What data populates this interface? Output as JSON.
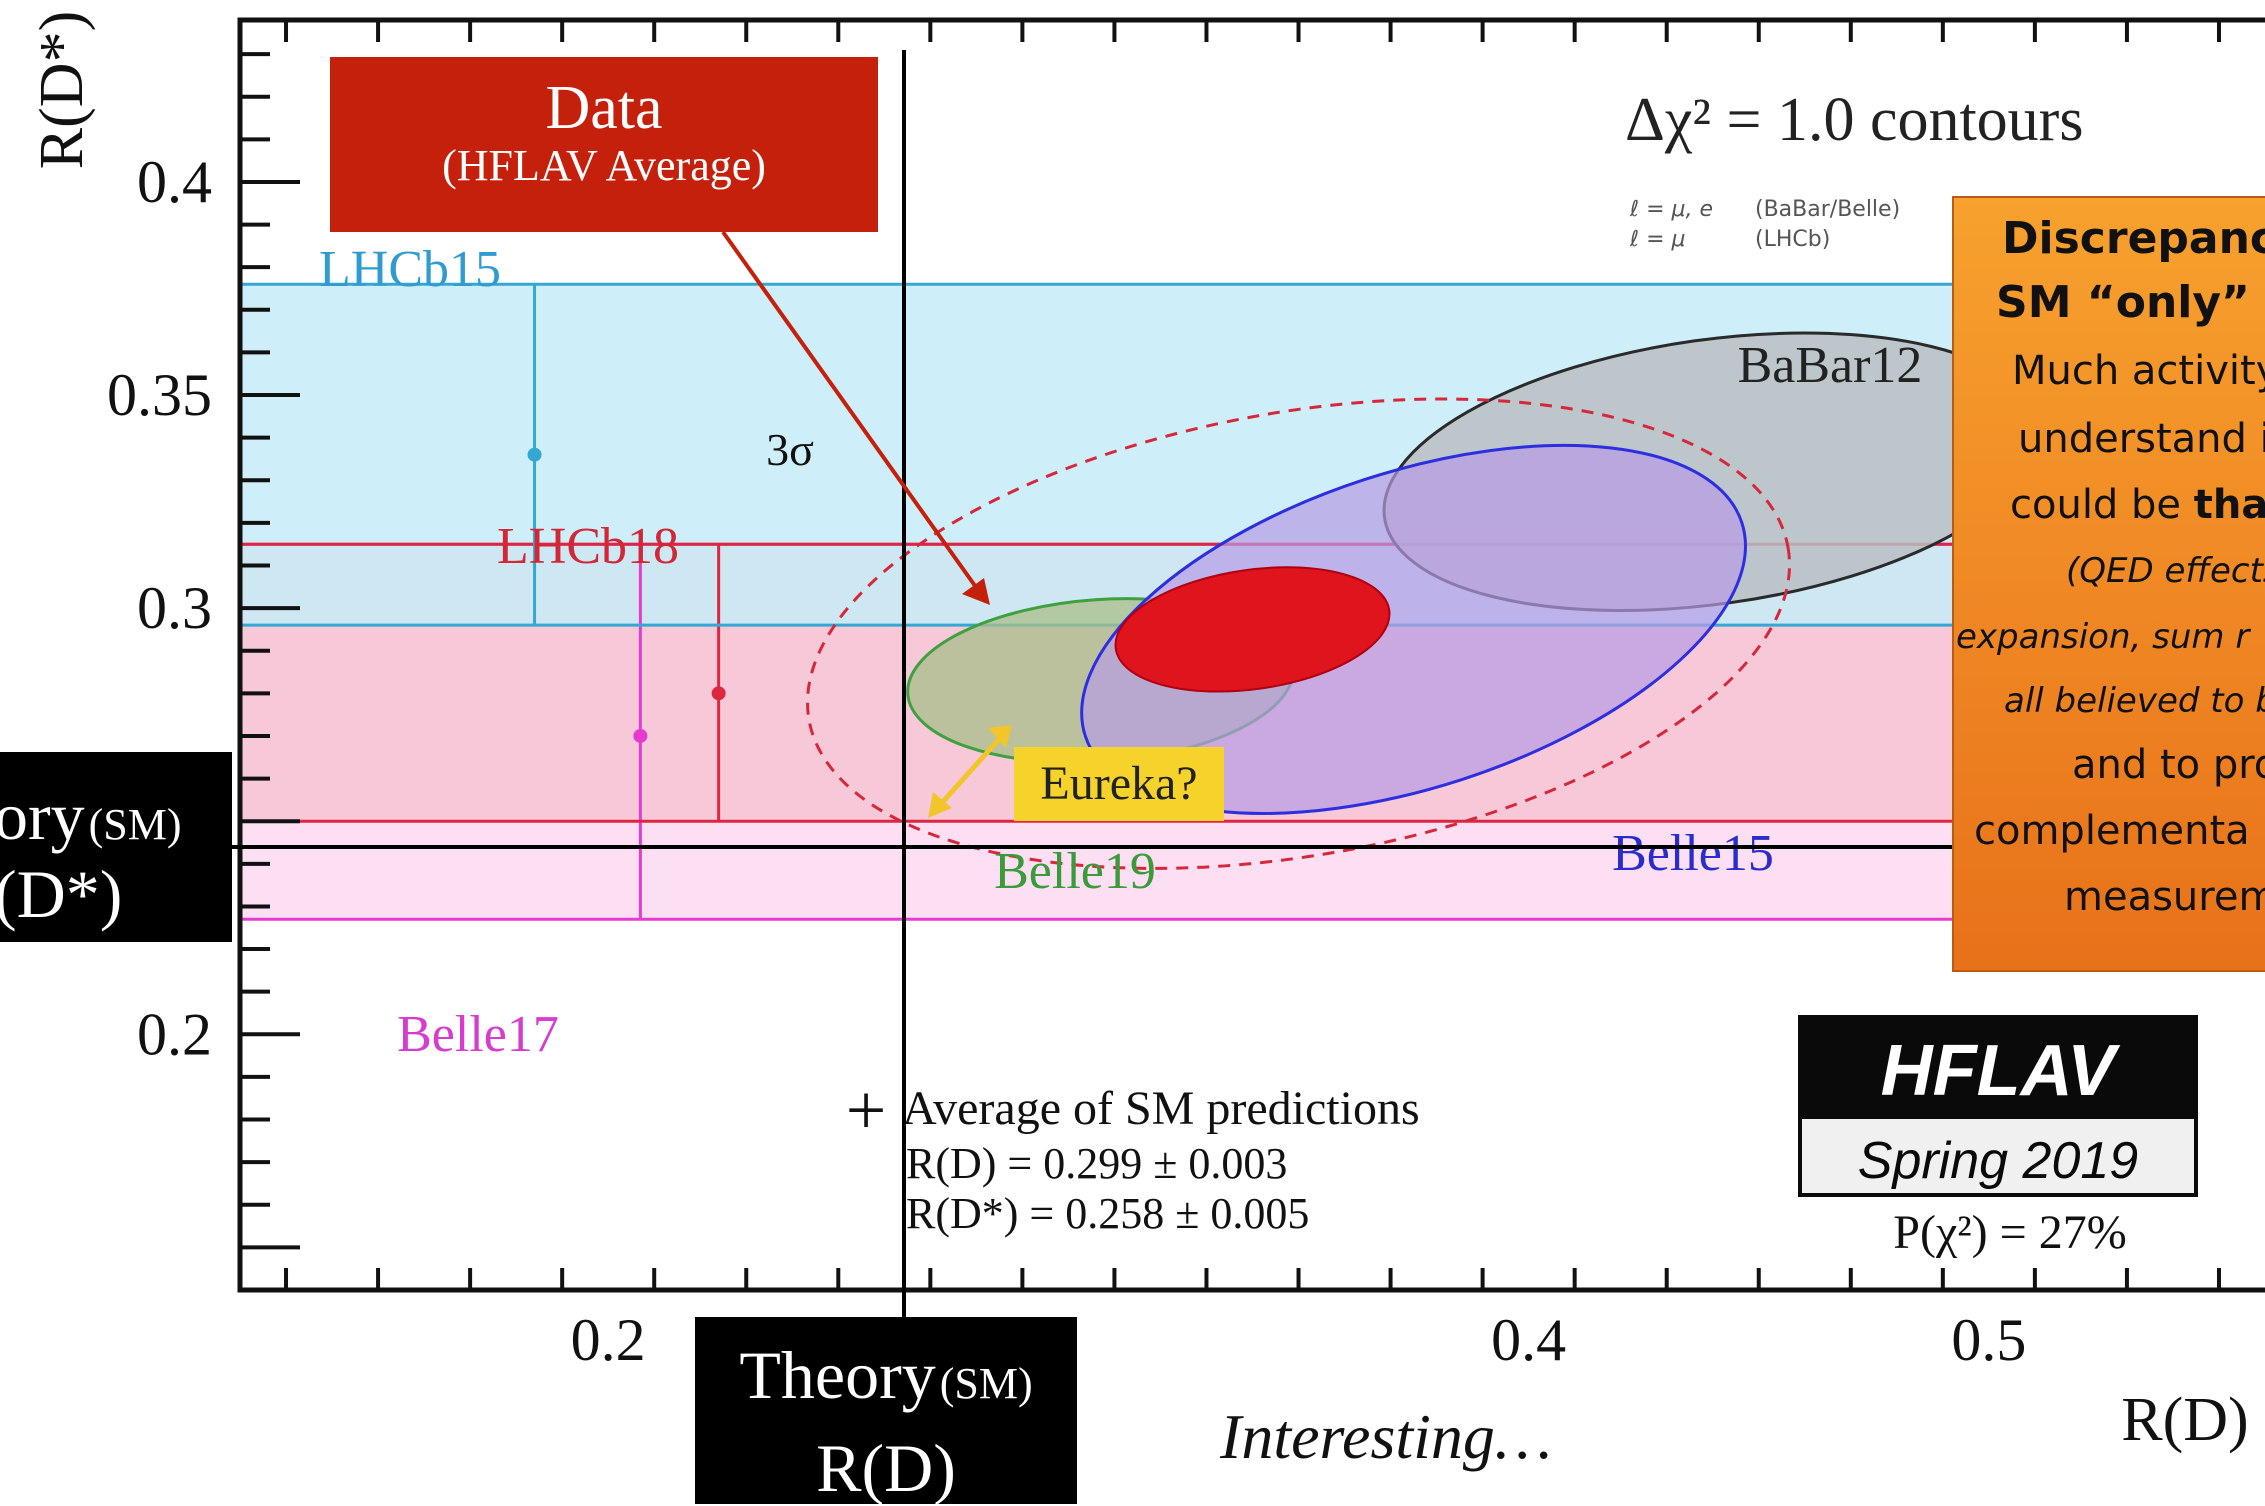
{
  "chart_data": {
    "type": "scatter",
    "xlabel": "R(D)",
    "ylabel": "R(D*)",
    "xlim": [
      0.12,
      0.56
    ],
    "ylim": [
      0.14,
      0.438
    ],
    "x_ticks": [
      "0.2",
      "0.4",
      "0.5"
    ],
    "y_ticks": [
      "0.2",
      "0.3",
      "0.35",
      "0.4"
    ],
    "top_right_title": "Δχ² = 1.0 contours",
    "lepton_notes": [
      {
        "lepton": "ℓ = μ, e",
        "exp": "(BaBar/Belle)"
      },
      {
        "lepton": "ℓ = μ",
        "exp": "(LHCb)"
      }
    ],
    "bands": [
      {
        "name": "LHCb15",
        "ymin": 0.296,
        "ymax": 0.376,
        "fill": "#c6ecf8",
        "stroke": "#35a7d3",
        "label_color": "#2f9bd0",
        "point": {
          "x": 0.184,
          "y": 0.336
        }
      },
      {
        "name": "LHCb18",
        "ymin": 0.25,
        "ymax": 0.315,
        "fill": "#f6c4d3",
        "stroke": "#dd2740",
        "label_color": "#d22737",
        "point": {
          "x": 0.224,
          "y": 0.28
        }
      },
      {
        "name": "Belle17",
        "ymin": 0.227,
        "ymax": 0.315,
        "fill": "#fbd9f0",
        "stroke": "#e63bd1",
        "label_color": "#d63ccd",
        "point": {
          "x": 0.207,
          "y": 0.27
        }
      }
    ],
    "ellipses": [
      {
        "name": "BaBar12",
        "cx": 0.44,
        "cy": 0.332,
        "rx": 0.072,
        "ry": 0.031,
        "rot": 8,
        "fill": "#b8bec3",
        "stroke": "#2a2a2a",
        "label_color": "#222"
      },
      {
        "name": "Belle15",
        "cx": 0.375,
        "cy": 0.295,
        "rx": 0.075,
        "ry": 0.037,
        "rot": 18,
        "fill": "#b79be4",
        "stroke": "#2d2ee0",
        "label_color": "#2a2ccc"
      },
      {
        "name": "Belle19",
        "cx": 0.307,
        "cy": 0.283,
        "rx": 0.042,
        "ry": 0.019,
        "rot": 4,
        "fill": "#a8bf8a",
        "stroke": "#3fa040",
        "label_color": "#3b9a3b"
      },
      {
        "name": "Average",
        "cx": 0.34,
        "cy": 0.295,
        "rx": 0.03,
        "ry": 0.014,
        "rot": 8,
        "fill": "#e0141d",
        "stroke": "#b00010",
        "label_color": "#b00010"
      }
    ],
    "three_sigma": {
      "label": "3σ",
      "cx": 0.35,
      "cy": 0.294,
      "rx": 0.108,
      "ry": 0.052,
      "rot": 10
    },
    "sm_average": {
      "label": "Average of SM predictions",
      "x": 0.299,
      "y": 0.258,
      "lines": [
        "R(D) = 0.299 ± 0.003",
        "R(D*) = 0.258 ± 0.005"
      ]
    },
    "logo": {
      "name": "HFLAV",
      "season": "Spring 2019",
      "prob": "P(χ²) = 27%"
    }
  },
  "overlays": {
    "data_box": {
      "title": "Data",
      "subtitle": "(HFLAV Average)"
    },
    "eureka": "Eureka?",
    "theory_x": {
      "line1": "Theory",
      "sm": "(SM)",
      "line2": "R(D)"
    },
    "theory_y": {
      "line1": "ory",
      "sm": "(SM)",
      "line2": "(D*)"
    },
    "side_box": {
      "head1": "Discrepancie",
      "head2": "SM “only” ~",
      "body1": "Much activity",
      "body2": "understand it",
      "body3_a": "could be ",
      "body3_b": "that",
      "italic1": "(QED effects?",
      "italic2": "expansion, sum r",
      "italic3": "all believed to b",
      "body4": "and to pro",
      "body5": "complementa",
      "body6": "measurem"
    },
    "bottom_note": "Interesting…"
  }
}
